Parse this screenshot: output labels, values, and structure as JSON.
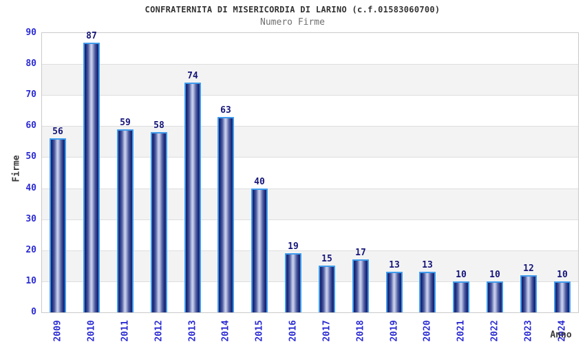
{
  "header": {
    "title": "CONFRATERNITA DI MISERICORDIA DI LARINO (c.f.01583060700)",
    "subtitle": "Numero Firme"
  },
  "chart_data": {
    "type": "bar",
    "title": "CONFRATERNITA DI MISERICORDIA DI LARINO (c.f.01583060700)",
    "subtitle": "Numero Firme",
    "xlabel": "Anno",
    "ylabel": "Firme",
    "categories": [
      "2009",
      "2010",
      "2011",
      "2012",
      "2013",
      "2014",
      "2015",
      "2016",
      "2017",
      "2018",
      "2019",
      "2020",
      "2021",
      "2022",
      "2023",
      "2024"
    ],
    "values": [
      56,
      87,
      59,
      58,
      74,
      63,
      40,
      19,
      15,
      17,
      13,
      13,
      10,
      10,
      12,
      10
    ],
    "ylim": [
      0,
      90
    ],
    "ytick_step": 10,
    "yticks": [
      0,
      10,
      20,
      30,
      40,
      50,
      60,
      70,
      80,
      90
    ],
    "grid": true,
    "alternating_bands": true,
    "legend": "none",
    "colors": {
      "bar_border": "#3f9ced",
      "bar_gradient_dark": "#151f68",
      "bar_gradient_light": "#ced4ee",
      "value_label": "#15157a",
      "axis_tick_label": "#2b2bd4",
      "axis_title": "#3a3a3a",
      "title": "#323232",
      "subtitle": "#6e6e6e",
      "band_fill": "#f3f3f3",
      "gridline": "#dedede",
      "plot_border": "#c9c9c9",
      "background": "#ffffff"
    }
  }
}
